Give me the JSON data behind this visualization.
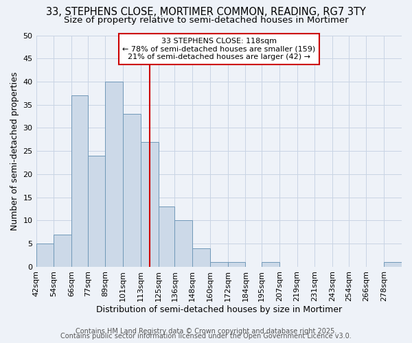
{
  "title": "33, STEPHENS CLOSE, MORTIMER COMMON, READING, RG7 3TY",
  "subtitle": "Size of property relative to semi-detached houses in Mortimer",
  "xlabel": "Distribution of semi-detached houses by size in Mortimer",
  "ylabel": "Number of semi-detached properties",
  "bin_labels": [
    "42sqm",
    "54sqm",
    "66sqm",
    "77sqm",
    "89sqm",
    "101sqm",
    "113sqm",
    "125sqm",
    "136sqm",
    "148sqm",
    "160sqm",
    "172sqm",
    "184sqm",
    "195sqm",
    "207sqm",
    "219sqm",
    "231sqm",
    "243sqm",
    "254sqm",
    "266sqm",
    "278sqm"
  ],
  "bar_values": [
    5,
    7,
    37,
    24,
    40,
    33,
    27,
    13,
    10,
    4,
    1,
    1,
    0,
    1,
    0,
    0,
    0,
    0,
    0,
    0,
    1
  ],
  "bar_color": "#ccd9e8",
  "bar_edge_color": "#7098b8",
  "grid_color": "#c8d4e4",
  "background_color": "#eef2f8",
  "vline_color": "#cc0000",
  "vline_x": 119,
  "bin_edges": [
    42,
    54,
    66,
    77,
    89,
    101,
    113,
    125,
    136,
    148,
    160,
    172,
    184,
    195,
    207,
    219,
    231,
    243,
    254,
    266,
    278,
    290
  ],
  "ylim": [
    0,
    50
  ],
  "yticks": [
    0,
    5,
    10,
    15,
    20,
    25,
    30,
    35,
    40,
    45,
    50
  ],
  "property_label": "33 STEPHENS CLOSE: 118sqm",
  "annotation_text_smaller": "← 78% of semi-detached houses are smaller (159)",
  "annotation_text_larger": "21% of semi-detached houses are larger (42) →",
  "footer1": "Contains HM Land Registry data © Crown copyright and database right 2025.",
  "footer2": "Contains public sector information licensed under the Open Government Licence v3.0.",
  "title_fontsize": 10.5,
  "subtitle_fontsize": 9.5,
  "axis_label_fontsize": 9,
  "tick_fontsize": 8,
  "annot_fontsize": 8,
  "footer_fontsize": 7
}
